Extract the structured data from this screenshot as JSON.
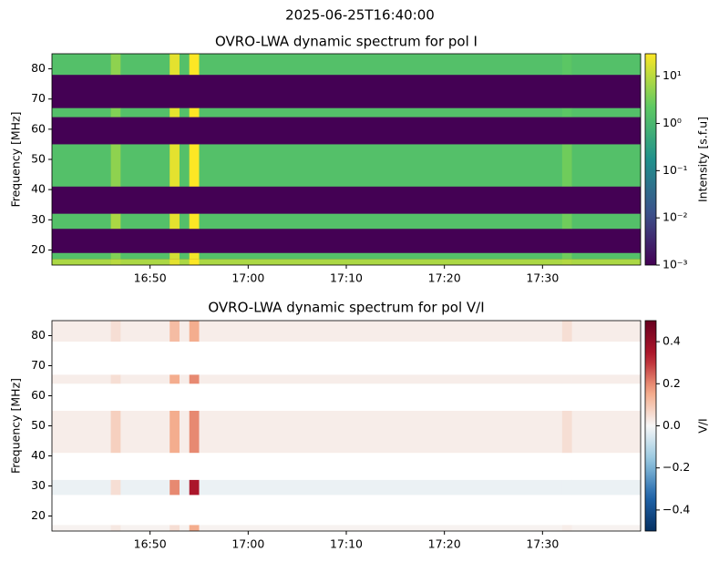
{
  "title": "2025-06-25T16:40:00",
  "chart_data": [
    {
      "type": "heatmap",
      "title": "OVRO-LWA dynamic spectrum for pol I",
      "ylabel": "Frequency [MHz]",
      "colorbar_label": "Intensity [s.f.u]",
      "cmap": "viridis",
      "color_scale": "log",
      "masked_color": "#440154",
      "clim": [
        0.001,
        30
      ],
      "cticks": [
        {
          "value": 0.001,
          "label": "10⁻³"
        },
        {
          "value": 0.01,
          "label": "10⁻²"
        },
        {
          "value": 0.1,
          "label": "10⁻¹"
        },
        {
          "value": 1,
          "label": "10⁰"
        },
        {
          "value": 10,
          "label": "10¹"
        }
      ],
      "xlim": [
        "16:40",
        "17:40"
      ],
      "xticks": [
        "16:50",
        "17:00",
        "17:10",
        "17:20",
        "17:30"
      ],
      "ylim": [
        15,
        85
      ],
      "yticks": [
        20,
        30,
        40,
        50,
        60,
        70,
        80
      ],
      "x": [
        "16:40",
        "16:46",
        "16:47",
        "16:52",
        "16:53",
        "16:54",
        "16:55",
        "17:32",
        "17:33",
        "17:40"
      ],
      "y": [
        15,
        17,
        19,
        27,
        32,
        41,
        55,
        64,
        67,
        78,
        85
      ],
      "values": [
        [
          8,
          10,
          8,
          20,
          8,
          30,
          8,
          9,
          8
        ],
        [
          1.5,
          4,
          1.5,
          15,
          1.5,
          25,
          1.5,
          3,
          1.5
        ],
        [
          null,
          null,
          null,
          null,
          null,
          null,
          null,
          null,
          null
        ],
        [
          1.5,
          8,
          1.5,
          20,
          1.5,
          30,
          1.5,
          3,
          1.5
        ],
        [
          null,
          null,
          null,
          null,
          null,
          null,
          null,
          null,
          null
        ],
        [
          1.5,
          5,
          1.5,
          20,
          1.5,
          30,
          1.5,
          3,
          1.5
        ],
        [
          null,
          null,
          null,
          null,
          null,
          null,
          null,
          null,
          null
        ],
        [
          1.5,
          4,
          1.5,
          20,
          1.5,
          30,
          1.5,
          2,
          1.5
        ],
        [
          null,
          null,
          null,
          null,
          null,
          null,
          null,
          null,
          null
        ],
        [
          1.5,
          5,
          1.5,
          20,
          1.5,
          30,
          1.5,
          2,
          1.5
        ]
      ]
    },
    {
      "type": "heatmap",
      "title": "OVRO-LWA dynamic spectrum for pol V/I",
      "ylabel": "Frequency [MHz]",
      "colorbar_label": "V/I",
      "cmap": "RdBu_r",
      "color_scale": "linear",
      "masked_color": "#ffffff",
      "clim": [
        -0.5,
        0.5
      ],
      "cticks": [
        {
          "value": -0.4,
          "label": "−0.4"
        },
        {
          "value": -0.2,
          "label": "−0.2"
        },
        {
          "value": 0,
          "label": "0.0"
        },
        0.2,
        0.4
      ],
      "xlim": [
        "16:40",
        "17:40"
      ],
      "xticks": [
        "16:50",
        "17:00",
        "17:10",
        "17:20",
        "17:30"
      ],
      "ylim": [
        15,
        85
      ],
      "yticks": [
        20,
        30,
        40,
        50,
        60,
        70,
        80
      ],
      "x": [
        "16:40",
        "16:46",
        "16:47",
        "16:52",
        "16:53",
        "16:54",
        "16:55",
        "17:32",
        "17:33",
        "17:40"
      ],
      "y": [
        15,
        17,
        19,
        27,
        32,
        41,
        55,
        64,
        67,
        78,
        85
      ],
      "values": [
        [
          0.01,
          0.03,
          0.01,
          0.05,
          0.01,
          0.15,
          0.01,
          0.02,
          0.01
        ],
        [
          null,
          null,
          null,
          null,
          null,
          null,
          null,
          null,
          null
        ],
        [
          null,
          null,
          null,
          null,
          null,
          null,
          null,
          null,
          null
        ],
        [
          -0.02,
          0.05,
          -0.02,
          0.2,
          -0.02,
          0.35,
          -0.02,
          -0.02,
          -0.02
        ],
        [
          null,
          null,
          null,
          null,
          null,
          null,
          null,
          null,
          null
        ],
        [
          0.02,
          0.08,
          0.02,
          0.15,
          0.02,
          0.2,
          0.02,
          0.05,
          0.02
        ],
        [
          null,
          null,
          null,
          null,
          null,
          null,
          null,
          null,
          null
        ],
        [
          0.02,
          0.05,
          0.02,
          0.15,
          0.02,
          0.2,
          0.02,
          0.02,
          0.02
        ],
        [
          null,
          null,
          null,
          null,
          null,
          null,
          null,
          null,
          null
        ],
        [
          0.02,
          0.05,
          0.02,
          0.12,
          0.02,
          0.15,
          0.02,
          0.05,
          0.02
        ]
      ]
    }
  ]
}
